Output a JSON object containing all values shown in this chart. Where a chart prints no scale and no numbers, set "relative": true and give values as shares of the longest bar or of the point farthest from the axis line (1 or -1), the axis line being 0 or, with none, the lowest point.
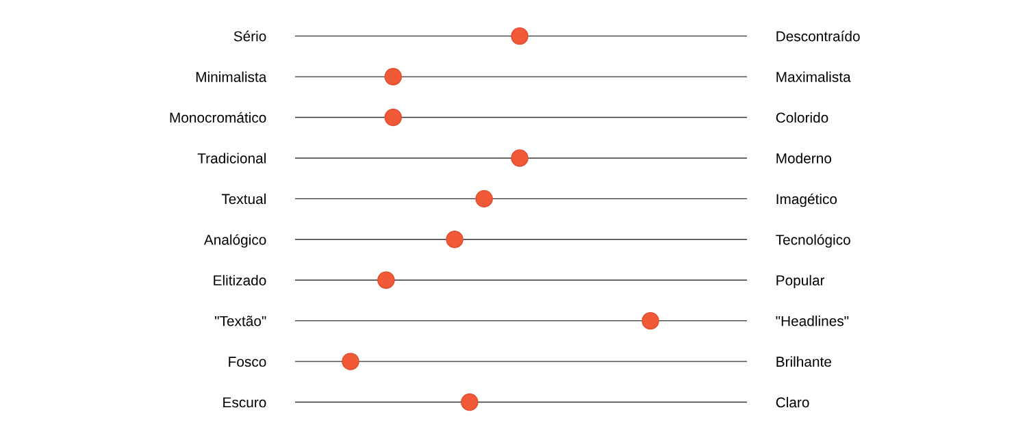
{
  "chart_data": {
    "type": "scatter",
    "orientation": "horizontal",
    "relative": true,
    "grid": "y",
    "marker": "circle",
    "categories": [
      "Sério",
      "Minimalista",
      "Monocromático",
      "Tradicional",
      "Textual",
      "Analógico",
      "Elitizado",
      "\"Textão\"",
      "Fosco",
      "Escuro"
    ],
    "y2_categories": [
      "Descontraído",
      "Maximalista",
      "Colorido",
      "Moderno",
      "Imagético",
      "Tecnológico",
      "Popular",
      "\"Headlines\"",
      "Brilhante",
      "Claro"
    ],
    "series": [
      {
        "color": "#f05a38",
        "values": [
          0.632,
          0.276,
          0.276,
          0.632,
          0.532,
          0.449,
          0.256,
          1,
          0.156,
          0.491
        ]
      }
    ]
  }
}
